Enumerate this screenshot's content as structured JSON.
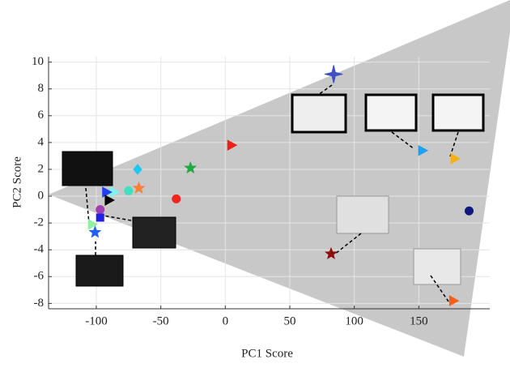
{
  "chart_data": {
    "type": "scatter",
    "xlabel": "PC1 Score",
    "ylabel": "PC2 Score",
    "xlim": [
      -137,
      205
    ],
    "ylim": [
      -8.4,
      10.4
    ],
    "xticks": [
      -100,
      -50,
      0,
      50,
      100,
      150
    ],
    "yticks": [
      -8,
      -6,
      -4,
      -2,
      0,
      2,
      4,
      6,
      8,
      10
    ],
    "grid": true,
    "points": [
      {
        "x": 84,
        "y": 9.1,
        "color": "#3f4fc4",
        "marker": "star4"
      },
      {
        "x": 5,
        "y": 3.8,
        "color": "#e8221c",
        "marker": "triangle-right"
      },
      {
        "x": -27,
        "y": 2.1,
        "color": "#22aa44",
        "marker": "star5"
      },
      {
        "x": -68,
        "y": 2.0,
        "color": "#1ec8f0",
        "marker": "diamond"
      },
      {
        "x": -67,
        "y": 0.6,
        "color": "#f7813a",
        "marker": "star5"
      },
      {
        "x": -38,
        "y": -0.2,
        "color": "#f0251e",
        "marker": "circle"
      },
      {
        "x": -75,
        "y": 0.4,
        "color": "#3ee0c0",
        "marker": "circle"
      },
      {
        "x": -86,
        "y": 0.3,
        "color": "#80f0f0",
        "marker": "triangle-right"
      },
      {
        "x": -92,
        "y": 0.3,
        "color": "#2040f0",
        "marker": "triangle-right"
      },
      {
        "x": -90,
        "y": -0.3,
        "color": "#000000",
        "marker": "triangle-right"
      },
      {
        "x": -97,
        "y": -1.0,
        "color": "#a040b0",
        "marker": "circle"
      },
      {
        "x": -97,
        "y": -1.6,
        "color": "#2020e0",
        "marker": "square"
      },
      {
        "x": -103,
        "y": -2.1,
        "color": "#90f0a0",
        "marker": "triangle-right"
      },
      {
        "x": -101,
        "y": -2.7,
        "color": "#2060f0",
        "marker": "star5"
      },
      {
        "x": 82,
        "y": -4.3,
        "color": "#8a1010",
        "marker": "star5"
      },
      {
        "x": 189,
        "y": -1.1,
        "color": "#101880",
        "marker": "circle"
      },
      {
        "x": 153,
        "y": 3.4,
        "color": "#20a0f0",
        "marker": "triangle-right"
      },
      {
        "x": 178,
        "y": 2.8,
        "color": "#f8b010",
        "marker": "triangle-right"
      },
      {
        "x": 177,
        "y": -7.8,
        "color": "#f86018",
        "marker": "triangle-right"
      }
    ]
  }
}
